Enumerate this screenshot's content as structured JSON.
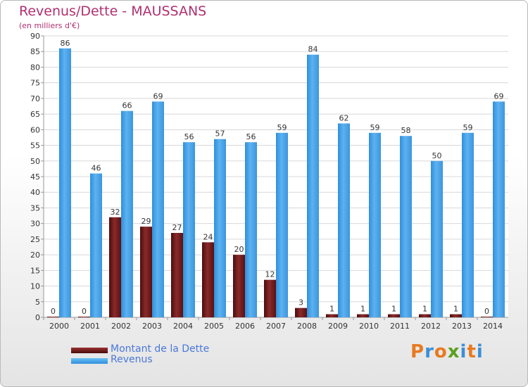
{
  "chart_data": {
    "type": "bar",
    "title": "Revenus/Dette - MAUSSANS",
    "subtitle": "(en milliers d'€)",
    "categories": [
      "2000",
      "2001",
      "2002",
      "2003",
      "2004",
      "2005",
      "2006",
      "2007",
      "2008",
      "2009",
      "2010",
      "2011",
      "2012",
      "2013",
      "2014"
    ],
    "series": [
      {
        "name": "Montant de la Dette",
        "color": "#7a1a1a",
        "values": [
          0,
          0,
          32,
          29,
          27,
          24,
          20,
          12,
          3,
          1,
          1,
          1,
          1,
          1,
          0
        ]
      },
      {
        "name": "Revenus",
        "color": "#4aa3e8",
        "values": [
          86,
          46,
          66,
          69,
          56,
          57,
          56,
          59,
          84,
          62,
          59,
          58,
          50,
          59,
          69
        ]
      }
    ],
    "ylim": [
      0,
      90
    ],
    "yticks": [
      0,
      5,
      10,
      15,
      20,
      25,
      30,
      35,
      40,
      45,
      50,
      55,
      60,
      65,
      70,
      75,
      80,
      85,
      90
    ],
    "grid": true,
    "legend_position": "bottom-left"
  },
  "logo": {
    "text": "Proxiti",
    "colors": [
      "#e87a20",
      "#3a8fd8",
      "#e87a20",
      "#5aa020",
      "#3a8fd8",
      "#e87a20",
      "#3a8fd8"
    ]
  }
}
